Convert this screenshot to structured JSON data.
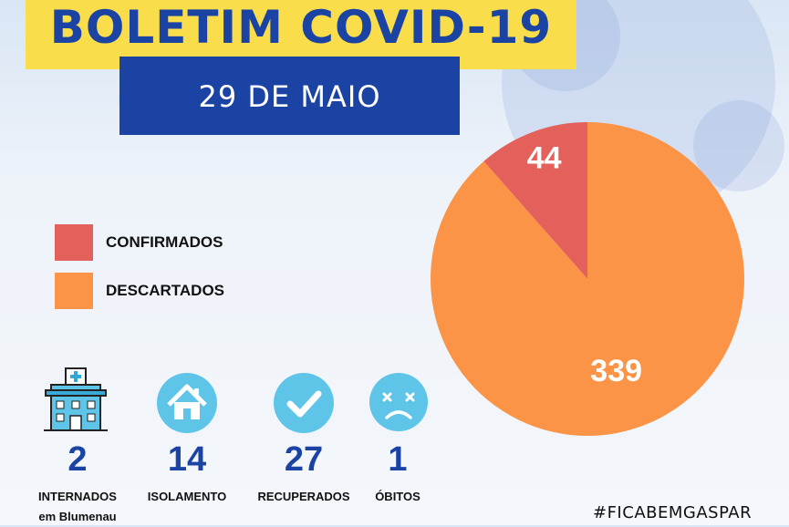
{
  "header": {
    "title": "BOLETIM COVID-19",
    "date": "29 DE MAIO"
  },
  "colors": {
    "title_band": "#f9dd4b",
    "title_text": "#1b43a4",
    "date_band": "#1b43a4",
    "confirmados": "#e4605a",
    "descartados": "#fb9447",
    "icon_circle": "#5ec5e8"
  },
  "legend": [
    {
      "label": "CONFIRMADOS",
      "color": "#e4605a"
    },
    {
      "label": "DESCARTADOS",
      "color": "#fb9447"
    }
  ],
  "chart_data": {
    "type": "pie",
    "title": "",
    "categories": [
      "CONFIRMADOS",
      "DESCARTADOS"
    ],
    "values": [
      44,
      339
    ],
    "colors": [
      "#e4605a",
      "#fb9447"
    ],
    "data_labels": [
      "44",
      "339"
    ],
    "legend_position": "left"
  },
  "stats": [
    {
      "value": "2",
      "label": "INTERNADOS",
      "sublabel": "em Blumenau",
      "icon": "hospital-icon"
    },
    {
      "value": "14",
      "label": "ISOLAMENTO",
      "sublabel": "",
      "icon": "house-icon"
    },
    {
      "value": "27",
      "label": "RECUPERADOS",
      "sublabel": "",
      "icon": "check-icon"
    },
    {
      "value": "1",
      "label": "ÓBITOS",
      "sublabel": "",
      "icon": "sad-face-icon"
    }
  ],
  "footer": {
    "hashtag": "#FICABEMGASPAR"
  }
}
